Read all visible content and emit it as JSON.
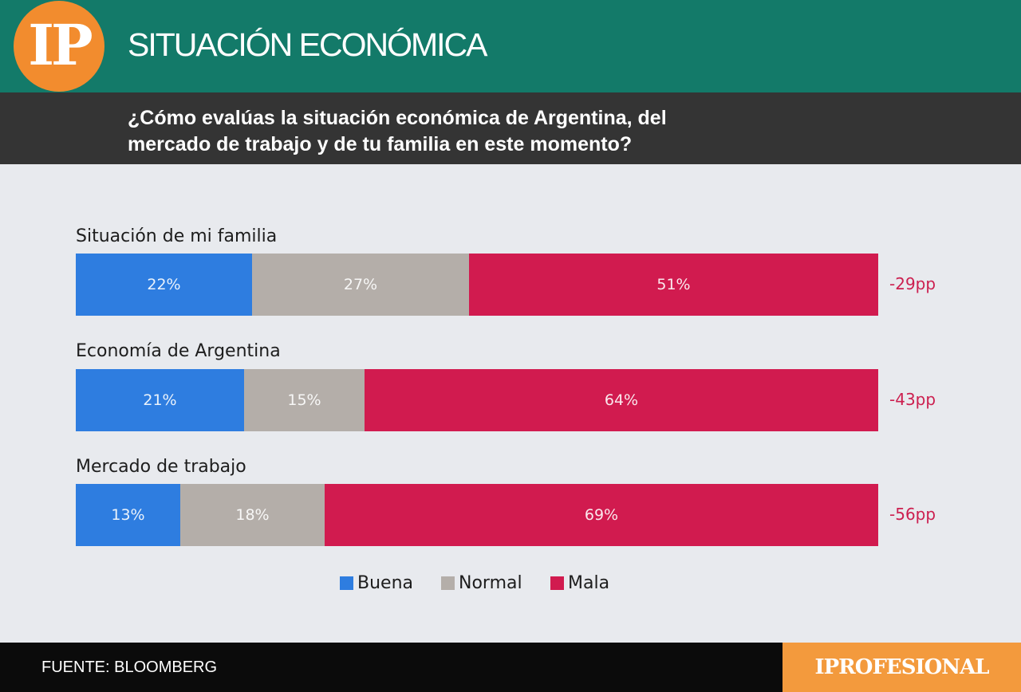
{
  "header": {
    "logo_text": "IP",
    "title": "SITUACIÓN ECONÓMICA",
    "question": "¿Cómo evalúas la situación económica de Argentina, del mercado de trabajo y de tu familia en este momento?"
  },
  "colors": {
    "header_green": "#137a69",
    "subheader_dark": "#343434",
    "logo_orange": "#f28c2e",
    "buena": "#2e7de0",
    "normal": "#b4aea9",
    "mala": "#d11b4f",
    "diff_text": "#cc1f4f"
  },
  "chart_data": {
    "type": "bar",
    "orientation": "horizontal",
    "stacked": true,
    "categories": [
      "Situación de mi familia",
      "Economía de Argentina",
      "Mercado de trabajo"
    ],
    "series": [
      {
        "name": "Buena",
        "values": [
          22,
          21,
          13
        ]
      },
      {
        "name": "Normal",
        "values": [
          27,
          15,
          18
        ]
      },
      {
        "name": "Mala",
        "values": [
          51,
          64,
          69
        ]
      }
    ],
    "value_labels": [
      [
        "22%",
        "27%",
        "51%"
      ],
      [
        "21%",
        "15%",
        "64%"
      ],
      [
        "13%",
        "18%",
        "69%"
      ]
    ],
    "annotations": [
      "-29pp",
      "-43pp",
      "-56pp"
    ],
    "xlim": [
      0,
      100
    ],
    "legend_position": "bottom-center",
    "grid": false
  },
  "footer": {
    "source": "FUENTE: BLOOMBERG",
    "brand": "IPROFESIONAL"
  }
}
